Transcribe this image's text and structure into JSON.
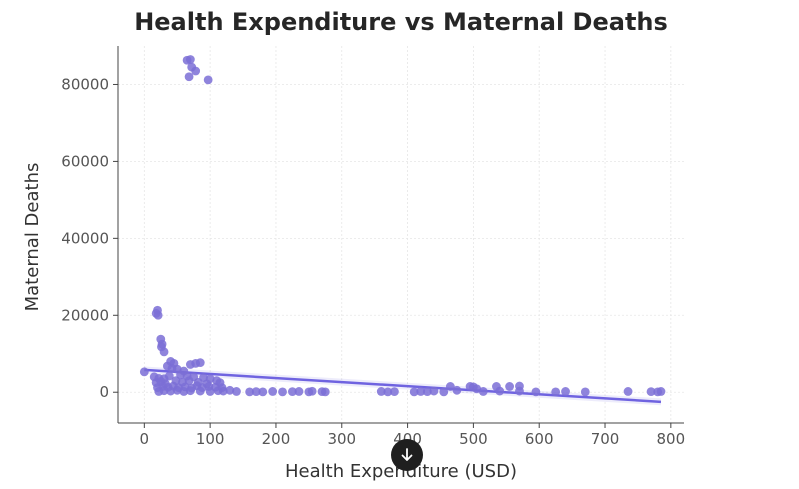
{
  "chart_data": {
    "type": "scatter",
    "title": "Health Expenditure vs Maternal Deaths",
    "xlabel": "Health Expenditure (USD)",
    "ylabel": "Maternal Deaths",
    "xlim": [
      -40,
      820
    ],
    "ylim": [
      -8000,
      90000
    ],
    "x_ticks": [
      0,
      100,
      200,
      300,
      400,
      500,
      600,
      700,
      800
    ],
    "y_ticks": [
      0,
      20000,
      40000,
      60000,
      80000
    ],
    "x_tick_labels": [
      "0",
      "100",
      "200",
      "300",
      "400",
      "500",
      "600",
      "700",
      "800"
    ],
    "y_tick_labels": [
      "0",
      "20000",
      "40000",
      "60000",
      "80000"
    ],
    "grid": true,
    "point_color": "#7b6fd6",
    "line_color": "#6f63e0",
    "points": [
      [
        65,
        86300
      ],
      [
        70,
        86500
      ],
      [
        72,
        84500
      ],
      [
        78,
        83500
      ],
      [
        68,
        82000
      ],
      [
        97,
        81200
      ],
      [
        20,
        21300
      ],
      [
        18,
        20500
      ],
      [
        21,
        20000
      ],
      [
        25,
        13800
      ],
      [
        27,
        12500
      ],
      [
        26,
        11800
      ],
      [
        30,
        10500
      ],
      [
        40,
        8000
      ],
      [
        45,
        7500
      ],
      [
        70,
        7200
      ],
      [
        78,
        7500
      ],
      [
        85,
        7700
      ],
      [
        35,
        6800
      ],
      [
        50,
        6000
      ],
      [
        42,
        6200
      ],
      [
        60,
        5500
      ],
      [
        0,
        5300
      ],
      [
        15,
        4000
      ],
      [
        22,
        3600
      ],
      [
        30,
        3500
      ],
      [
        38,
        4200
      ],
      [
        55,
        4500
      ],
      [
        65,
        4200
      ],
      [
        75,
        4000
      ],
      [
        90,
        3800
      ],
      [
        100,
        3500
      ],
      [
        18,
        2500
      ],
      [
        25,
        2800
      ],
      [
        32,
        2200
      ],
      [
        48,
        3000
      ],
      [
        58,
        2600
      ],
      [
        68,
        3000
      ],
      [
        82,
        2600
      ],
      [
        95,
        2200
      ],
      [
        110,
        3000
      ],
      [
        115,
        2500
      ],
      [
        20,
        1200
      ],
      [
        28,
        1500
      ],
      [
        36,
        1300
      ],
      [
        44,
        1600
      ],
      [
        52,
        1200
      ],
      [
        62,
        1400
      ],
      [
        72,
        1100
      ],
      [
        80,
        1700
      ],
      [
        88,
        1200
      ],
      [
        98,
        1500
      ],
      [
        108,
        1300
      ],
      [
        118,
        1200
      ],
      [
        22,
        200
      ],
      [
        30,
        400
      ],
      [
        40,
        300
      ],
      [
        50,
        500
      ],
      [
        60,
        200
      ],
      [
        70,
        400
      ],
      [
        85,
        300
      ],
      [
        100,
        200
      ],
      [
        112,
        400
      ],
      [
        120,
        300
      ],
      [
        130,
        500
      ],
      [
        140,
        200
      ],
      [
        160,
        100
      ],
      [
        170,
        150
      ],
      [
        180,
        100
      ],
      [
        195,
        200
      ],
      [
        210,
        100
      ],
      [
        225,
        150
      ],
      [
        235,
        200
      ],
      [
        250,
        100
      ],
      [
        255,
        250
      ],
      [
        270,
        150
      ],
      [
        275,
        100
      ],
      [
        360,
        200
      ],
      [
        370,
        100
      ],
      [
        380,
        150
      ],
      [
        410,
        100
      ],
      [
        420,
        200
      ],
      [
        430,
        150
      ],
      [
        440,
        300
      ],
      [
        455,
        100
      ],
      [
        465,
        1500
      ],
      [
        475,
        500
      ],
      [
        495,
        1500
      ],
      [
        500,
        1400
      ],
      [
        505,
        900
      ],
      [
        515,
        200
      ],
      [
        535,
        1500
      ],
      [
        540,
        300
      ],
      [
        555,
        1500
      ],
      [
        570,
        1600
      ],
      [
        570,
        300
      ],
      [
        595,
        100
      ],
      [
        625,
        100
      ],
      [
        640,
        200
      ],
      [
        670,
        100
      ],
      [
        735,
        200
      ],
      [
        770,
        150
      ],
      [
        780,
        100
      ],
      [
        785,
        200
      ]
    ],
    "trend_line": {
      "x": [
        0,
        785
      ],
      "y": [
        5800,
        -2500
      ]
    }
  }
}
